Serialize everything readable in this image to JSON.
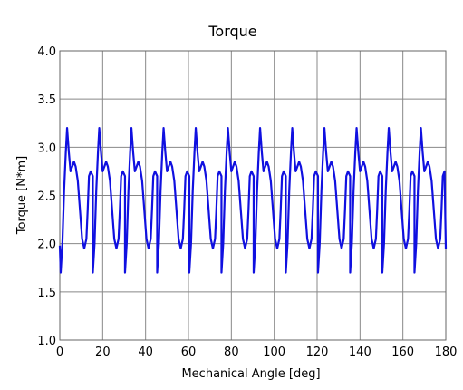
{
  "chart_data": {
    "type": "line",
    "title": "Torque",
    "xlabel": "Mechanical Angle [deg]",
    "ylabel": "Torque [N*m]",
    "xlim": [
      0,
      180
    ],
    "ylim": [
      1.0,
      4.0
    ],
    "xticks": [
      "0",
      "20",
      "40",
      "60",
      "80",
      "100",
      "120",
      "140",
      "160",
      "180"
    ],
    "yticks": [
      "1.0",
      "1.5",
      "2.0",
      "2.5",
      "3.0",
      "3.5",
      "4.0"
    ],
    "grid": true,
    "series": [
      {
        "name": "",
        "color": "#1010e0",
        "period_deg": 15,
        "x": [
          0,
          15,
          30,
          45,
          60,
          75,
          90,
          105,
          120,
          135,
          150,
          165,
          180
        ],
        "y": [
          2.0,
          1.7,
          1.7,
          1.7,
          1.7,
          1.7,
          1.7,
          1.7,
          1.7,
          1.7,
          1.7,
          1.7,
          1.95
        ],
        "one_period_profile": {
          "phase_deg": [
            0,
            0.8,
            1.6,
            2.4,
            3.0,
            3.8,
            4.6,
            5.4,
            6.2,
            7.0,
            8.0,
            9.0,
            10.0,
            11.0,
            12.0,
            12.6,
            13.2,
            14.0,
            15.0
          ],
          "torque": [
            1.7,
            2.0,
            2.55,
            2.95,
            3.2,
            2.95,
            2.75,
            2.8,
            2.85,
            2.8,
            2.65,
            2.35,
            2.05,
            1.95,
            2.05,
            2.35,
            2.7,
            2.75,
            2.7
          ]
        }
      }
    ]
  }
}
